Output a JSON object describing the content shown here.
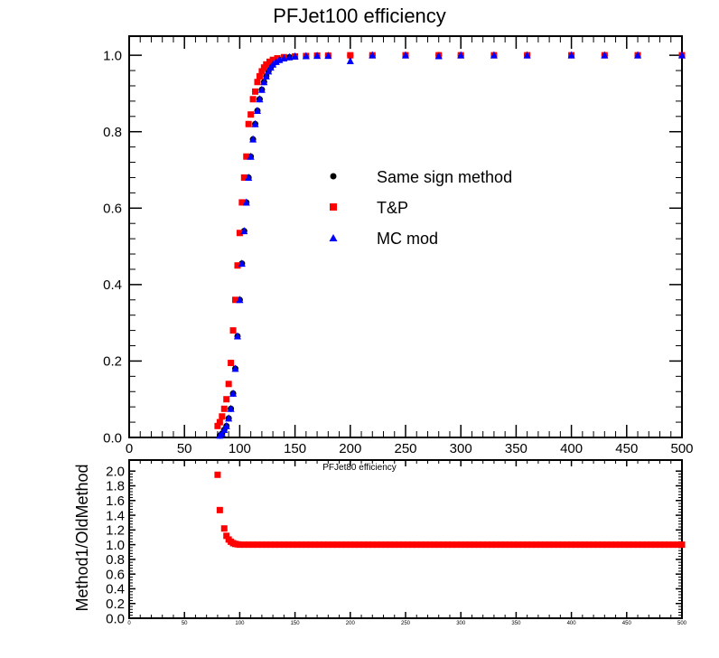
{
  "chart_data": [
    {
      "type": "scatter",
      "title": "PFJet100 efficiency",
      "xlabel": "",
      "ylabel": "",
      "xlim": [
        0,
        500
      ],
      "ylim": [
        0,
        1.05
      ],
      "x_ticks": [
        "0",
        "50",
        "100",
        "150",
        "200",
        "250",
        "300",
        "350",
        "400",
        "450",
        "500"
      ],
      "y_ticks": [
        "0.0",
        "0.2",
        "0.4",
        "0.6",
        "0.8",
        "1.0"
      ],
      "legend": {
        "placement": "center",
        "entries": [
          "Same sign method",
          "T&P",
          "MC mod"
        ]
      },
      "series": [
        {
          "name": "Same sign method",
          "marker": "circle",
          "color": "#000000",
          "points": [
            [
              82,
              0.005
            ],
            [
              84,
              0.01
            ],
            [
              86,
              0.02
            ],
            [
              88,
              0.03
            ],
            [
              90,
              0.05
            ],
            [
              92,
              0.075
            ],
            [
              94,
              0.115
            ],
            [
              96,
              0.18
            ],
            [
              98,
              0.265
            ],
            [
              100,
              0.36
            ],
            [
              102,
              0.455
            ],
            [
              104,
              0.54
            ],
            [
              106,
              0.615
            ],
            [
              108,
              0.68
            ],
            [
              110,
              0.735
            ],
            [
              112,
              0.78
            ],
            [
              114,
              0.82
            ],
            [
              116,
              0.855
            ],
            [
              118,
              0.885
            ],
            [
              120,
              0.91
            ],
            [
              122,
              0.93
            ],
            [
              124,
              0.945
            ],
            [
              126,
              0.958
            ],
            [
              128,
              0.968
            ],
            [
              130,
              0.976
            ],
            [
              133,
              0.983
            ],
            [
              136,
              0.988
            ],
            [
              140,
              0.992
            ],
            [
              145,
              0.995
            ],
            [
              150,
              0.997
            ],
            [
              160,
              0.998
            ],
            [
              170,
              0.999
            ],
            [
              180,
              0.999
            ],
            [
              200,
              0.999
            ],
            [
              220,
              1.0
            ],
            [
              250,
              1.0
            ],
            [
              280,
              1.0
            ],
            [
              300,
              1.0
            ],
            [
              330,
              1.0
            ],
            [
              360,
              1.0
            ],
            [
              400,
              1.0
            ],
            [
              430,
              1.0
            ],
            [
              460,
              1.0
            ],
            [
              500,
              1.0
            ]
          ]
        },
        {
          "name": "T&P",
          "marker": "square",
          "color": "#ff0000",
          "points": [
            [
              80,
              0.03
            ],
            [
              82,
              0.04
            ],
            [
              84,
              0.055
            ],
            [
              86,
              0.075
            ],
            [
              88,
              0.1
            ],
            [
              90,
              0.14
            ],
            [
              92,
              0.195
            ],
            [
              94,
              0.28
            ],
            [
              96,
              0.36
            ],
            [
              98,
              0.45
            ],
            [
              100,
              0.535
            ],
            [
              102,
              0.615
            ],
            [
              104,
              0.68
            ],
            [
              106,
              0.735
            ],
            [
              108,
              0.82
            ],
            [
              110,
              0.845
            ],
            [
              112,
              0.885
            ],
            [
              114,
              0.905
            ],
            [
              116,
              0.93
            ],
            [
              118,
              0.945
            ],
            [
              120,
              0.958
            ],
            [
              122,
              0.968
            ],
            [
              124,
              0.976
            ],
            [
              127,
              0.983
            ],
            [
              130,
              0.988
            ],
            [
              134,
              0.992
            ],
            [
              140,
              0.995
            ],
            [
              150,
              0.997
            ],
            [
              160,
              0.998
            ],
            [
              170,
              0.999
            ],
            [
              180,
              0.999
            ],
            [
              200,
              1.0
            ],
            [
              220,
              1.0
            ],
            [
              250,
              1.0
            ],
            [
              280,
              1.0
            ],
            [
              300,
              1.0
            ],
            [
              330,
              1.0
            ],
            [
              360,
              1.0
            ],
            [
              400,
              1.0
            ],
            [
              430,
              1.0
            ],
            [
              460,
              1.0
            ],
            [
              500,
              1.0
            ]
          ]
        },
        {
          "name": "MC mod",
          "marker": "triangle",
          "color": "#0000ff",
          "points": [
            [
              82,
              0.005
            ],
            [
              84,
              0.01
            ],
            [
              86,
              0.02
            ],
            [
              88,
              0.03
            ],
            [
              90,
              0.05
            ],
            [
              92,
              0.075
            ],
            [
              94,
              0.115
            ],
            [
              96,
              0.18
            ],
            [
              98,
              0.265
            ],
            [
              100,
              0.36
            ],
            [
              102,
              0.455
            ],
            [
              104,
              0.54
            ],
            [
              106,
              0.615
            ],
            [
              108,
              0.68
            ],
            [
              110,
              0.735
            ],
            [
              112,
              0.78
            ],
            [
              114,
              0.82
            ],
            [
              116,
              0.855
            ],
            [
              118,
              0.885
            ],
            [
              120,
              0.91
            ],
            [
              122,
              0.93
            ],
            [
              124,
              0.945
            ],
            [
              126,
              0.958
            ],
            [
              128,
              0.968
            ],
            [
              130,
              0.976
            ],
            [
              133,
              0.983
            ],
            [
              136,
              0.988
            ],
            [
              140,
              0.992
            ],
            [
              145,
              0.995
            ],
            [
              150,
              0.997
            ],
            [
              160,
              0.998
            ],
            [
              170,
              0.999
            ],
            [
              180,
              0.999
            ],
            [
              200,
              0.985
            ],
            [
              220,
              1.0
            ],
            [
              250,
              1.0
            ],
            [
              280,
              0.998
            ],
            [
              300,
              1.0
            ],
            [
              330,
              1.0
            ],
            [
              360,
              1.0
            ],
            [
              400,
              1.0
            ],
            [
              430,
              1.0
            ],
            [
              460,
              1.0
            ],
            [
              500,
              1.0
            ]
          ]
        }
      ]
    },
    {
      "type": "scatter",
      "title": "PFJet80 efficiency",
      "xlabel": "",
      "ylabel": "Method1/OldMethod",
      "xlim": [
        0,
        500
      ],
      "ylim": [
        0,
        2.15
      ],
      "x_ticks": [
        "0",
        "50",
        "100",
        "150",
        "200",
        "250",
        "300",
        "350",
        "400",
        "450",
        "500"
      ],
      "y_ticks": [
        "0.0",
        "0.2",
        "0.4",
        "0.6",
        "0.8",
        "1.0",
        "1.2",
        "1.4",
        "1.6",
        "1.8",
        "2.0"
      ],
      "series": [
        {
          "name": "",
          "marker": "square",
          "color": "#ff0000",
          "points": [
            [
              80,
              1.95
            ],
            [
              82,
              1.47
            ],
            [
              86,
              1.22
            ],
            [
              88,
              1.12
            ],
            [
              90,
              1.07
            ],
            [
              92,
              1.04
            ],
            [
              94,
              1.02
            ],
            [
              96,
              1.01
            ],
            [
              98,
              1.005
            ],
            [
              100,
              1.0
            ],
            [
              104,
              1.0
            ],
            [
              108,
              1.0
            ],
            [
              112,
              1.0
            ],
            [
              116,
              1.0
            ],
            [
              120,
              1.0
            ],
            [
              124,
              1.0
            ],
            [
              128,
              1.0
            ],
            [
              132,
              1.0
            ],
            [
              136,
              1.0
            ],
            [
              140,
              1.0
            ],
            [
              144,
              1.0
            ],
            [
              148,
              1.0
            ],
            [
              152,
              1.0
            ],
            [
              156,
              1.0
            ],
            [
              160,
              1.0
            ],
            [
              164,
              1.0
            ],
            [
              168,
              1.0
            ],
            [
              172,
              1.0
            ],
            [
              176,
              1.0
            ],
            [
              180,
              1.0
            ],
            [
              184,
              1.0
            ],
            [
              188,
              1.0
            ],
            [
              192,
              1.0
            ],
            [
              196,
              1.0
            ],
            [
              200,
              1.0
            ],
            [
              204,
              1.0
            ],
            [
              208,
              1.0
            ],
            [
              212,
              1.0
            ],
            [
              216,
              1.0
            ],
            [
              220,
              1.0
            ],
            [
              224,
              1.0
            ],
            [
              228,
              1.0
            ],
            [
              232,
              1.0
            ],
            [
              236,
              1.0
            ],
            [
              240,
              1.0
            ],
            [
              244,
              1.0
            ],
            [
              248,
              1.0
            ],
            [
              252,
              1.0
            ],
            [
              256,
              1.0
            ],
            [
              260,
              1.0
            ],
            [
              264,
              1.0
            ],
            [
              268,
              1.0
            ],
            [
              272,
              1.0
            ],
            [
              276,
              1.0
            ],
            [
              280,
              1.0
            ],
            [
              284,
              1.0
            ],
            [
              288,
              1.0
            ],
            [
              292,
              1.0
            ],
            [
              296,
              1.0
            ],
            [
              300,
              1.0
            ],
            [
              304,
              1.0
            ],
            [
              308,
              1.0
            ],
            [
              312,
              1.0
            ],
            [
              316,
              1.0
            ],
            [
              320,
              1.0
            ],
            [
              324,
              1.0
            ],
            [
              328,
              1.0
            ],
            [
              332,
              1.0
            ],
            [
              336,
              1.0
            ],
            [
              340,
              1.0
            ],
            [
              344,
              1.0
            ],
            [
              348,
              1.0
            ],
            [
              352,
              1.0
            ],
            [
              356,
              1.0
            ],
            [
              360,
              1.0
            ],
            [
              364,
              1.0
            ],
            [
              368,
              1.0
            ],
            [
              372,
              1.0
            ],
            [
              376,
              1.0
            ],
            [
              380,
              1.0
            ],
            [
              384,
              1.0
            ],
            [
              388,
              1.0
            ],
            [
              392,
              1.0
            ],
            [
              396,
              1.0
            ],
            [
              400,
              1.0
            ],
            [
              404,
              1.0
            ],
            [
              408,
              1.0
            ],
            [
              412,
              1.0
            ],
            [
              416,
              1.0
            ],
            [
              420,
              1.0
            ],
            [
              424,
              1.0
            ],
            [
              428,
              1.0
            ],
            [
              432,
              1.0
            ],
            [
              436,
              1.0
            ],
            [
              440,
              1.0
            ],
            [
              444,
              1.0
            ],
            [
              448,
              1.0
            ],
            [
              452,
              1.0
            ],
            [
              456,
              1.0
            ],
            [
              460,
              1.0
            ],
            [
              464,
              1.0
            ],
            [
              468,
              1.0
            ],
            [
              472,
              1.0
            ],
            [
              476,
              1.0
            ],
            [
              480,
              1.0
            ],
            [
              484,
              1.0
            ],
            [
              488,
              1.0
            ],
            [
              492,
              1.0
            ],
            [
              496,
              1.0
            ],
            [
              500,
              1.0
            ]
          ]
        }
      ]
    }
  ]
}
